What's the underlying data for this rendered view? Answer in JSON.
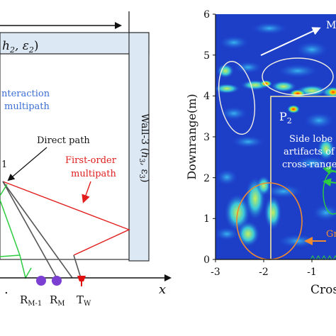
{
  "left_panel": {
    "label_h2": "h",
    "label_h2_sub": "2",
    "label_h2_eps": ", ε",
    "label_h2_eps_sub": "2",
    "label_h2_close": ")",
    "interaction_line1": "nteraction",
    "interaction_line2": "multipath",
    "direct_path": "Direct path",
    "first_order_line1": "First-order",
    "first_order_line2": "multipath",
    "wall3_label": "Wall-3 (",
    "wall3_h": "h",
    "wall3_h_sub": "3",
    "wall3_eps": ", ε",
    "wall3_eps_sub": "3",
    "wall3_close": ")",
    "point_label": "1",
    "x_axis_label": "x",
    "antenna_rm1": "R",
    "antenna_rm1_sub": "M-1",
    "antenna_rm": "R",
    "antenna_rm_sub": "M",
    "antenna_tw": "T",
    "antenna_tw_sub": "W",
    "dots": ".",
    "colors": {
      "red_path": "#e11d1d",
      "green_path": "#2ecc40",
      "blue_text": "#3b6fd6",
      "wall_fill": "#dde8f5",
      "receiver": "#7b3fd1",
      "transmitter": "#e01010"
    }
  },
  "right_panel": {
    "y_axis_label": "Downrange(m)",
    "x_axis_label": "Cros",
    "y_ticks": [
      "0",
      "1",
      "2",
      "3",
      "4",
      "5",
      "6"
    ],
    "x_ticks": [
      "-3",
      "-2",
      "-1"
    ],
    "p2_label": "P",
    "p2_sub": "2",
    "side_lobe_line1": "Side lobe",
    "side_lobe_line2": "artifacts of",
    "side_lobe_line3": "cross-range",
    "top_right_label": "M",
    "ground_label": "Gr"
  }
}
